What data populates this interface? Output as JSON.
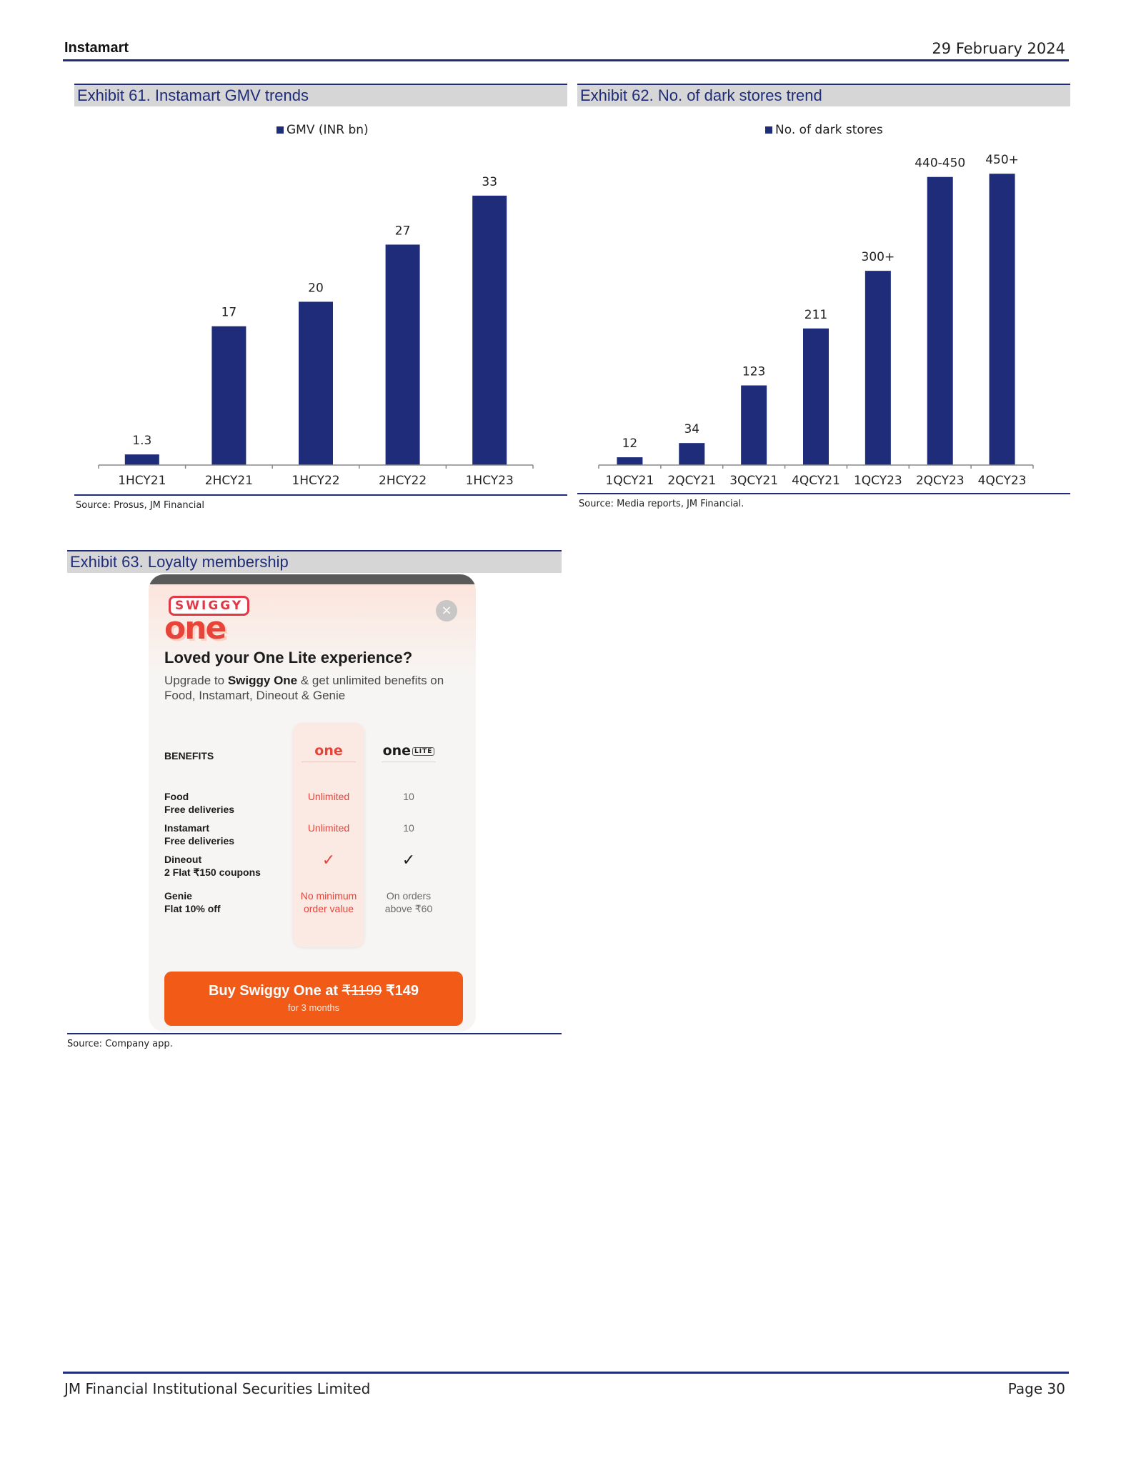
{
  "header": {
    "section": "Instamart",
    "date": "29 February 2024"
  },
  "exhibit61": {
    "title": "Exhibit 61. Instamart GMV trends",
    "source": "Source: Prosus, JM Financial",
    "chart_data": {
      "type": "bar",
      "title": "Exhibit 61. Instamart GMV trends",
      "legend": "GMV (INR bn)",
      "categories": [
        "1HCY21",
        "2HCY21",
        "1HCY22",
        "2HCY22",
        "1HCY23"
      ],
      "values": [
        1.3,
        17,
        20,
        27,
        33
      ],
      "labels": [
        "1.3",
        "17",
        "20",
        "27",
        "33"
      ],
      "xlabel": "",
      "ylabel": "",
      "ylim": [
        0,
        35
      ],
      "color": "#1f2c7a"
    }
  },
  "exhibit62": {
    "title": "Exhibit 62. No. of dark stores trend",
    "source": "Source: Media reports, JM Financial.",
    "chart_data": {
      "type": "bar",
      "title": "Exhibit 62. No. of dark stores trend",
      "legend": "No. of dark stores",
      "categories": [
        "1QCY21",
        "2QCY21",
        "3QCY21",
        "4QCY21",
        "1QCY23",
        "2QCY23",
        "4QCY23"
      ],
      "values": [
        12,
        34,
        123,
        211,
        300,
        445,
        450
      ],
      "labels": [
        "12",
        "34",
        "123",
        "211",
        "300+",
        "440-450",
        "450+"
      ],
      "xlabel": "",
      "ylabel": "",
      "ylim": [
        0,
        480
      ],
      "color": "#1f2c7a"
    }
  },
  "exhibit63": {
    "title": "Exhibit 63.  Loyalty membership",
    "source": "Source: Company app.",
    "app": {
      "logo_top": "SWIGGY",
      "logo_bottom": "one",
      "close": "×",
      "heading": "Loved your One Lite experience?",
      "sub_prefix": "Upgrade to ",
      "sub_bold": "Swiggy One",
      "sub_suffix": " & get unlimited benefits on Food, Instamart, Dineout & Genie",
      "benefits_header": "BENEFITS",
      "col_one": "one",
      "col_lite": "one",
      "col_lite_badge": "LITE",
      "rows": [
        {
          "title": "Food",
          "detail": "Free deliveries",
          "one_l1": "Unlimited",
          "one_l2": "",
          "lite_l1": "10",
          "lite_l2": ""
        },
        {
          "title": "Instamart",
          "detail": "Free deliveries",
          "one_l1": "Unlimited",
          "one_l2": "",
          "lite_l1": "10",
          "lite_l2": ""
        },
        {
          "title": "Dineout",
          "detail": "2 Flat ₹150 coupons",
          "one_l1": "✓",
          "one_l2": "",
          "lite_l1": "✓",
          "lite_l2": ""
        },
        {
          "title": "Genie",
          "detail": "Flat 10% off",
          "one_l1": "No minimum",
          "one_l2": "order value",
          "lite_l1": "On orders",
          "lite_l2": "above ₹60"
        }
      ],
      "cta_prefix": "Buy Swiggy One at ",
      "cta_old_price": "₹1199",
      "cta_new_price": " ₹149",
      "cta_sub": "for 3 months"
    }
  },
  "footer": {
    "company": "JM Financial Institutional Securities Limited",
    "page": "Page 30"
  }
}
